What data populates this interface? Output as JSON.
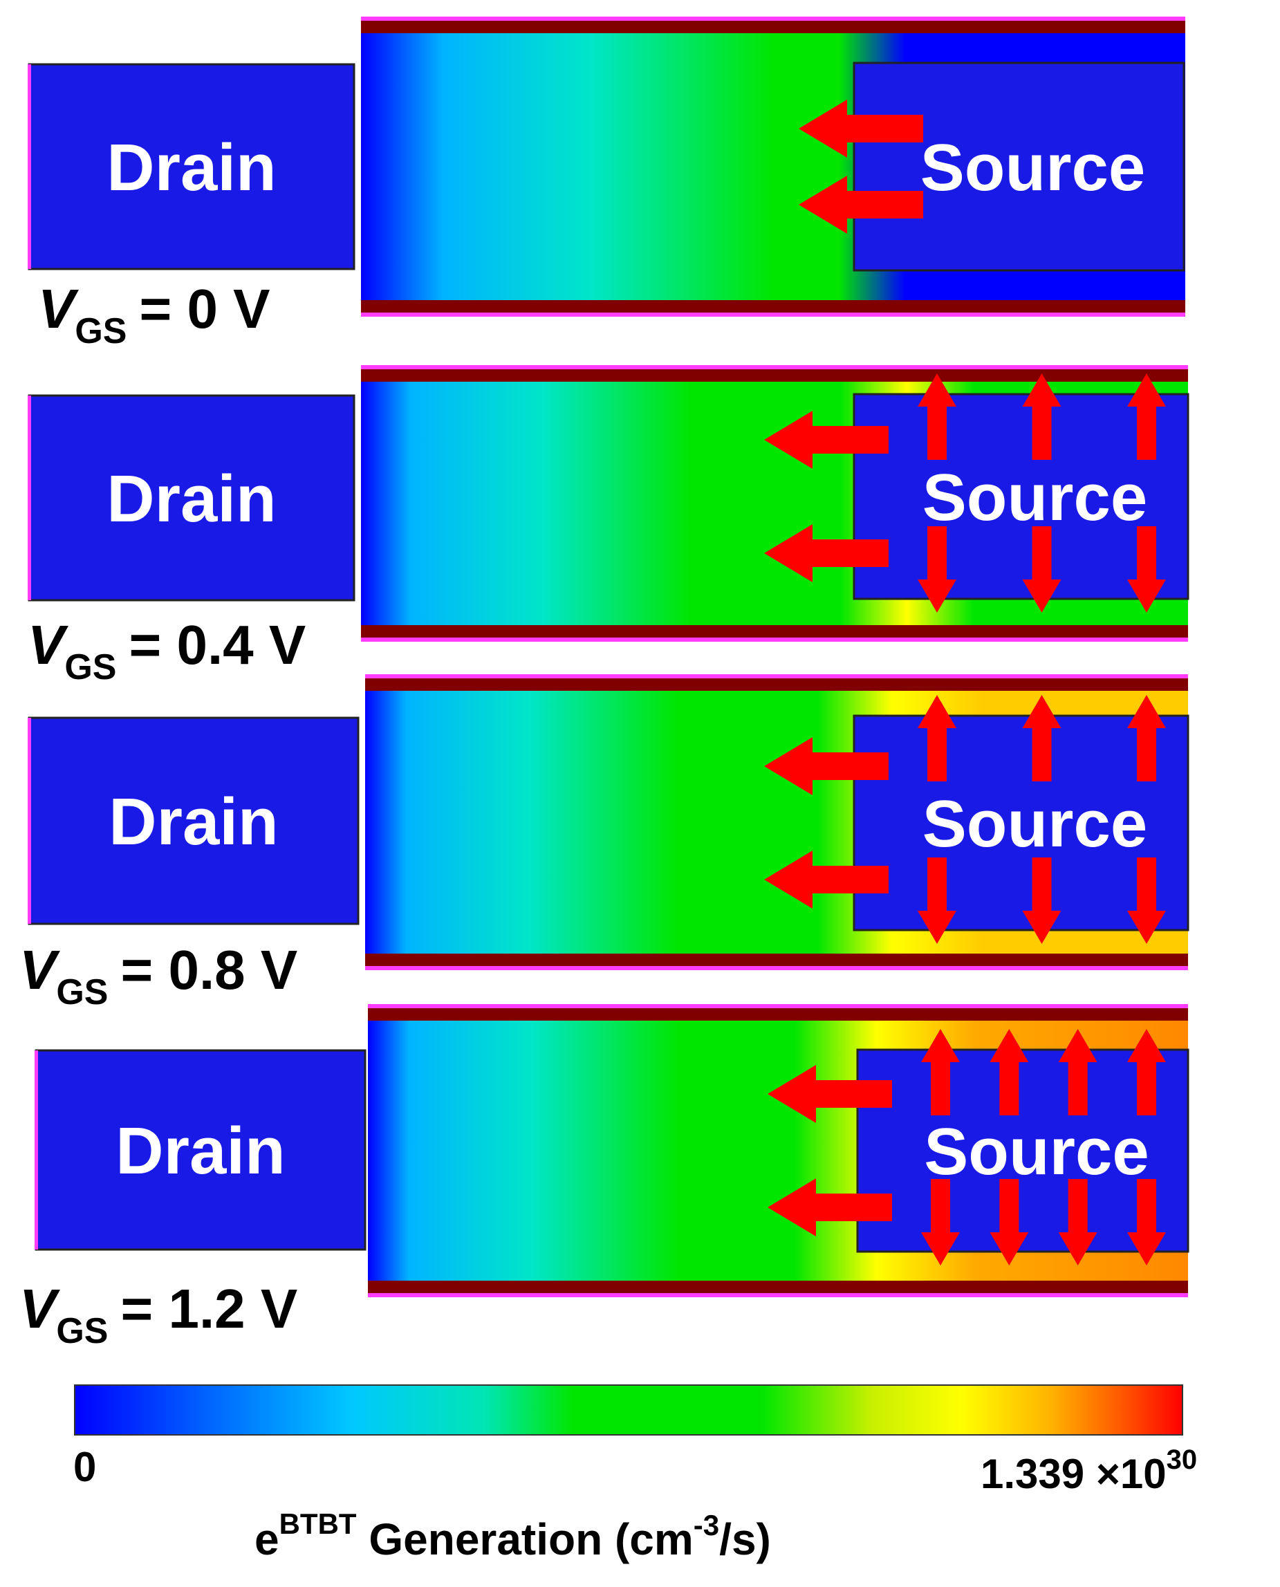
{
  "panels": [
    {
      "drain_label": "Drain",
      "source_label": "Source",
      "vgs_var": "V",
      "vgs_sub": "GS",
      "vgs_value": "= 0 V",
      "sideways_arrows": 0
    },
    {
      "drain_label": "Drain",
      "source_label": "Source",
      "vgs_var": "V",
      "vgs_sub": "GS",
      "vgs_value": "= 0.4 V",
      "sideways_arrows": 3
    },
    {
      "drain_label": "Drain",
      "source_label": "Source",
      "vgs_var": "V",
      "vgs_sub": "GS",
      "vgs_value": "= 0.8 V",
      "sideways_arrows": 3
    },
    {
      "drain_label": "Drain",
      "source_label": "Source",
      "vgs_var": "V",
      "vgs_sub": "GS",
      "vgs_value": "= 1.2 V",
      "sideways_arrows": 4
    }
  ],
  "colorbar": {
    "min_label": "0",
    "max_label": "1.339 ×10",
    "max_exponent": "30",
    "title_e": "e",
    "title_sup": "BTBT",
    "title_main": " Generation  (cm",
    "title_unit_sup": "-3",
    "title_end": "/s)",
    "colors": [
      "#0000ff",
      "#00b4ff",
      "#00e6c8",
      "#00dc3c",
      "#00e600",
      "#c8f000",
      "#ffff00",
      "#ffb400",
      "#ff6400",
      "#ff0000"
    ]
  },
  "colors": {
    "region": "#1a1ae6",
    "channel_cold": "#1a1ae6",
    "channel_warm": "#00e600",
    "oxide": "#800000",
    "edge": "#ff3cff",
    "arrow": "#ff0000"
  }
}
